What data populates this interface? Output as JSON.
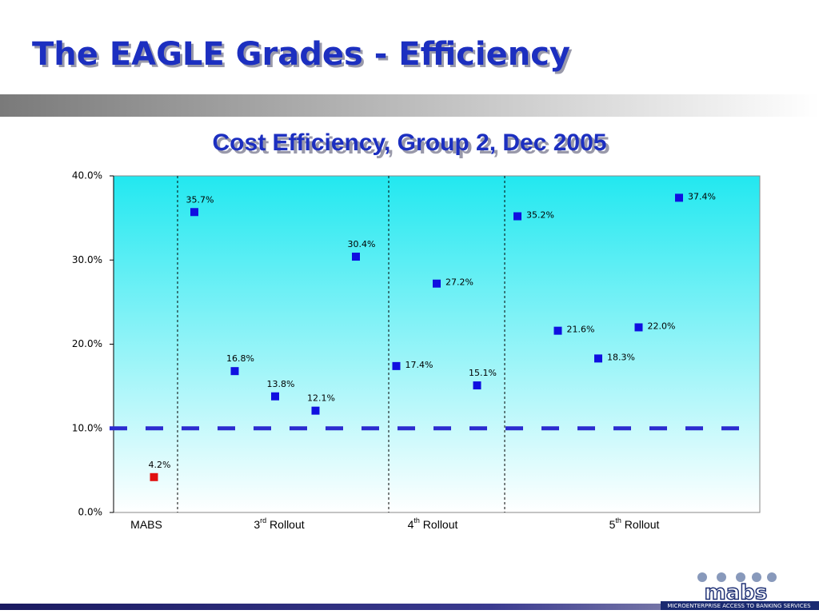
{
  "title": "The EAGLE Grades - Efficiency",
  "logo": {
    "name": "mabs",
    "tagline": "MICROENTERPRISE ACCESS TO BANKING SERVICES"
  },
  "chart_data": {
    "type": "scatter",
    "title": "Cost Efficiency, Group 2,  Dec 2005",
    "values": [
      4.2,
      35.7,
      16.8,
      13.8,
      12.1,
      30.4,
      17.4,
      27.2,
      15.1,
      35.2,
      21.6,
      18.3,
      22.0,
      37.4
    ],
    "value_labels": [
      "4.2%",
      "35.7%",
      "16.8%",
      "13.8%",
      "12.1%",
      "30.4%",
      "17.4%",
      "27.2%",
      "15.1%",
      "35.2%",
      "21.6%",
      "18.3%",
      "22.0%",
      "37.4%"
    ],
    "colors": [
      "#e01010",
      "#1010e0",
      "#1010e0",
      "#1010e0",
      "#1010e0",
      "#1010e0",
      "#1010e0",
      "#1010e0",
      "#1010e0",
      "#1010e0",
      "#1010e0",
      "#1010e0",
      "#1010e0",
      "#1010e0"
    ],
    "groups": [
      [
        "MABS"
      ],
      [
        "3",
        "rd",
        " Rollout"
      ],
      [
        "4",
        "th",
        "  Rollout"
      ],
      [
        "5",
        "th",
        " Rollout"
      ]
    ],
    "reference_line": 10,
    "reference_color": "#2b2bd0",
    "ylim": [
      0,
      40
    ],
    "yticks": [
      {
        "value": 0,
        "label": "0.0%"
      },
      {
        "value": 10,
        "label": "10.0%"
      },
      {
        "value": 20,
        "label": "20.0%"
      },
      {
        "value": 30,
        "label": "30.0%"
      },
      {
        "value": 40,
        "label": "40.0%"
      }
    ]
  }
}
